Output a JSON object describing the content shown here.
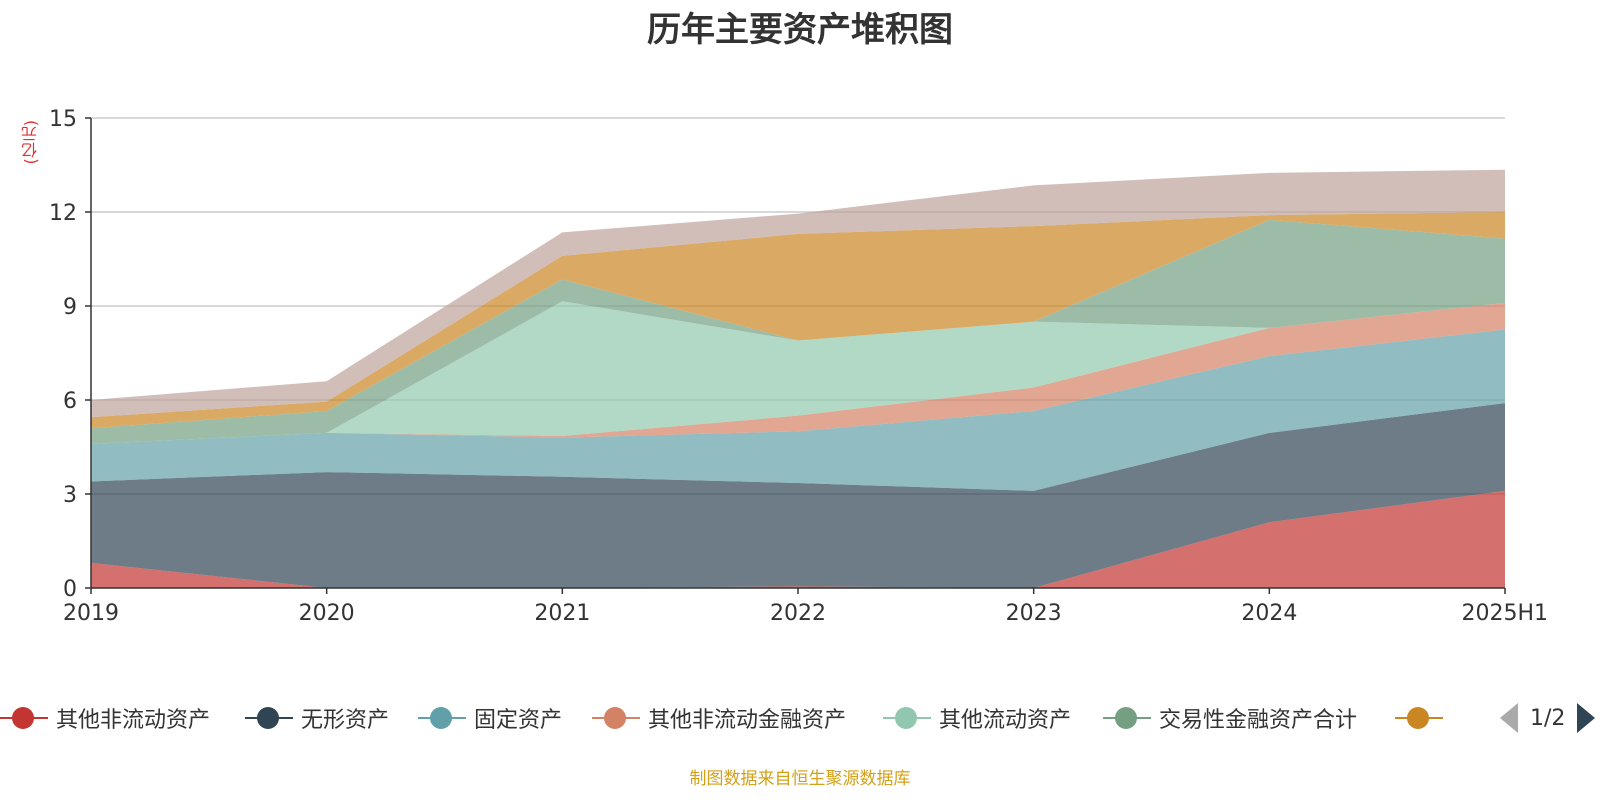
{
  "chart_data": {
    "type": "area",
    "stacked": true,
    "title": "历年主要资产堆积图",
    "unit_label": "(亿元)",
    "categories": [
      "2019",
      "2020",
      "2021",
      "2022",
      "2023",
      "2024",
      "2025H1"
    ],
    "ylim": [
      0,
      15
    ],
    "yticks": [
      0,
      3,
      6,
      9,
      12,
      15
    ],
    "grid": true,
    "legend_position": "bottom",
    "series": [
      {
        "name": "其他非流动资产",
        "color": "#c23531",
        "values": [
          0.8,
          0.0,
          0.0,
          0.05,
          0.0,
          2.1,
          3.1
        ]
      },
      {
        "name": "无形资产",
        "color": "#2f4554",
        "values": [
          2.6,
          3.7,
          3.55,
          3.3,
          3.1,
          2.85,
          2.8
        ]
      },
      {
        "name": "固定资产",
        "color": "#61a0a8",
        "values": [
          1.2,
          1.25,
          1.25,
          1.65,
          2.55,
          2.45,
          2.35
        ]
      },
      {
        "name": "其他非流动金融资产",
        "color": "#d48265",
        "values": [
          0.0,
          0.0,
          0.05,
          0.5,
          0.75,
          0.9,
          0.85
        ]
      },
      {
        "name": "其他流动资产",
        "color": "#91c7ae",
        "values": [
          0.0,
          0.0,
          4.3,
          2.4,
          2.1,
          0.0,
          0.0
        ]
      },
      {
        "name": "交易性金融资产合计",
        "color": "#749f83",
        "values": [
          0.5,
          0.7,
          0.7,
          0.0,
          0.0,
          3.45,
          2.05
        ]
      },
      {
        "name": "",
        "color": "#ca8622",
        "values": [
          0.35,
          0.3,
          0.75,
          3.4,
          3.05,
          0.15,
          0.85
        ]
      },
      {
        "name": "",
        "color": "#bda29a",
        "values": [
          0.55,
          0.65,
          0.75,
          0.65,
          1.3,
          1.35,
          1.35
        ]
      }
    ]
  },
  "legend": {
    "page_text": "1/2",
    "prev_icon": "triangle-left-icon",
    "next_icon": "triangle-right-icon"
  },
  "source": "制图数据来自恒生聚源数据库"
}
